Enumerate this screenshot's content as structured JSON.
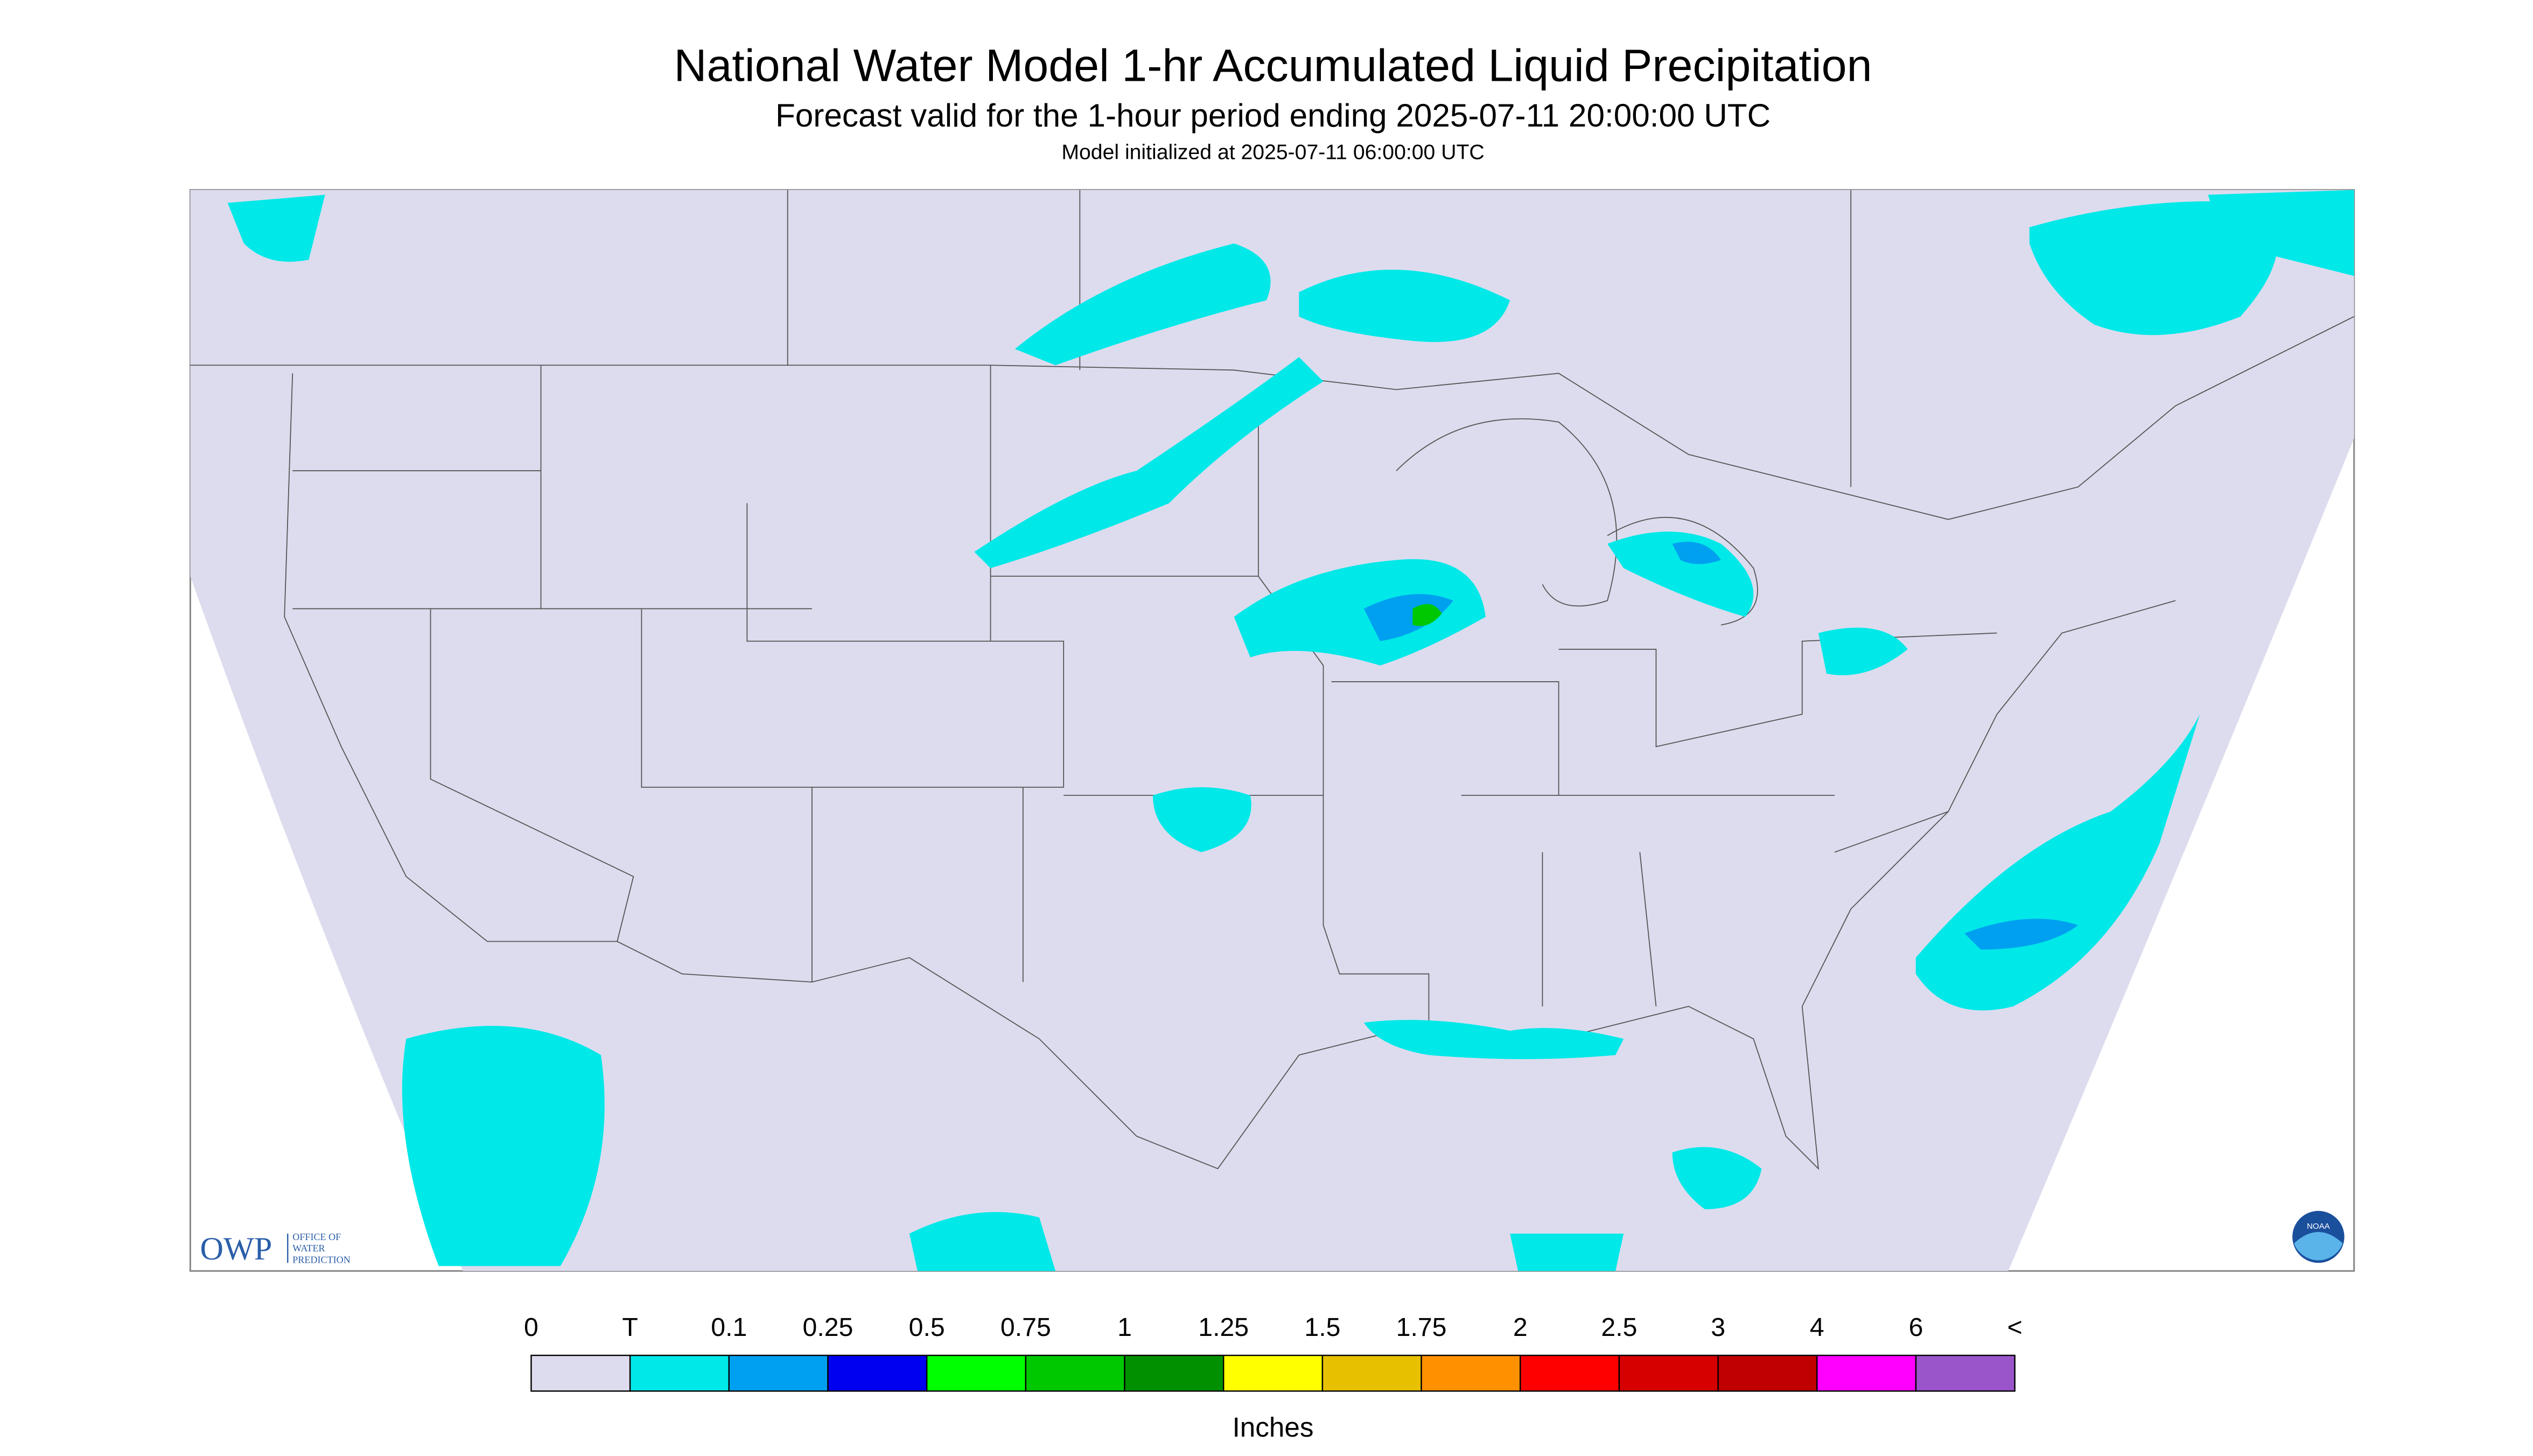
{
  "header": {
    "title": "National Water Model 1-hr Accumulated Liquid Precipitation",
    "subtitle": "Forecast valid for the 1-hour period ending 2025-07-11 20:00:00 UTC",
    "init": "Model initialized at 2025-07-11 06:00:00 UTC"
  },
  "legend": {
    "labels": [
      "0",
      "T",
      "0.1",
      "0.25",
      "0.5",
      "0.75",
      "1",
      "1.25",
      "1.5",
      "1.75",
      "2",
      "2.5",
      "3",
      "4",
      "6",
      "<"
    ],
    "colors": [
      "#dcdcee",
      "#00e8e8",
      "#00a0f0",
      "#0000f0",
      "#00ff00",
      "#00c800",
      "#009000",
      "#ffff00",
      "#e7c000",
      "#ff9000",
      "#ff0000",
      "#d60000",
      "#c00000",
      "#ff00ff",
      "#9955c9"
    ],
    "units": "Inches"
  },
  "logos": {
    "owp": "OWP",
    "owp_lines": [
      "OFFICE OF",
      "WATER",
      "PREDICTION"
    ],
    "noaa": "NOAA"
  }
}
